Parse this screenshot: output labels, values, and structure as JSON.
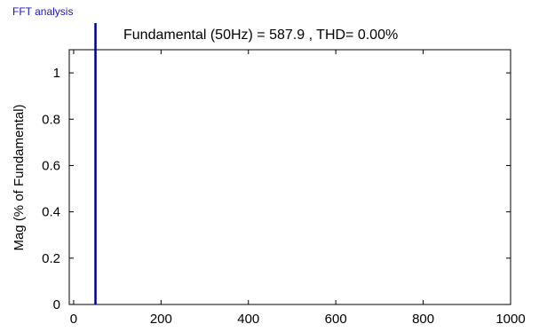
{
  "header": {
    "label": "FFT analysis"
  },
  "chart_data": {
    "type": "bar",
    "title": "Fundamental (50Hz) = 587.9 , THD= 0.00%",
    "xlabel": "",
    "ylabel": "Mag (% of Fundamental)",
    "xlim": [
      -10,
      1000
    ],
    "ylim": [
      0,
      1.1
    ],
    "x_ticks": [
      0,
      200,
      400,
      600,
      800,
      1000
    ],
    "y_ticks": [
      0,
      0.2,
      0.4,
      0.6,
      0.8,
      1
    ],
    "x_tick_labels": [
      "0",
      "200",
      "400",
      "600",
      "800",
      "1000"
    ],
    "y_tick_labels": [
      "0",
      "0.2",
      "0.4",
      "0.6",
      "0.8",
      "1"
    ],
    "grid": false,
    "series": [
      {
        "color": "#00008b",
        "points": [
          {
            "x": 50,
            "y": 1.1
          }
        ]
      }
    ]
  }
}
